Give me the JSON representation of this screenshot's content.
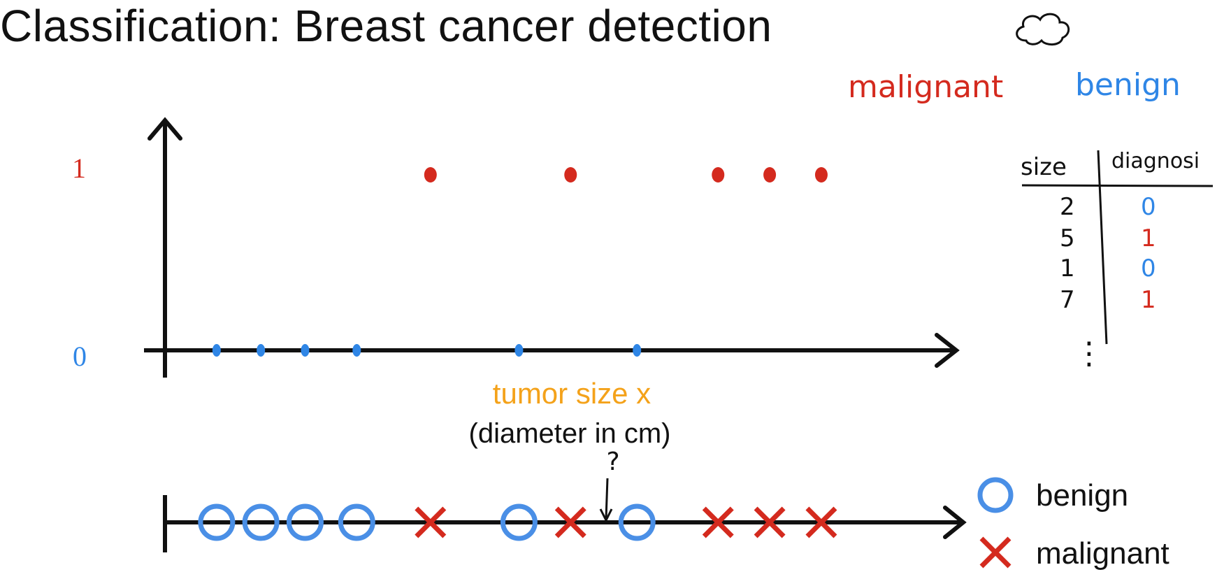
{
  "title": "Classification: Breast cancer detection",
  "colors": {
    "malignant": "#d42a1e",
    "benign": "#2f86e6",
    "benign_marker": "#4a8fe6",
    "xlabel": "#f4a21a",
    "axis": "#111111"
  },
  "class_labels": {
    "malignant": "malignant",
    "benign": "benign"
  },
  "table": {
    "headers": [
      "size",
      "diagnosi"
    ],
    "rows": [
      {
        "size": "2",
        "diagnosis": "0"
      },
      {
        "size": "5",
        "diagnosis": "1"
      },
      {
        "size": "1",
        "diagnosis": "0"
      },
      {
        "size": "7",
        "diagnosis": "1"
      }
    ],
    "ellipsis": "⋮"
  },
  "legend": [
    {
      "marker": "circle",
      "label": "benign"
    },
    {
      "marker": "cross",
      "label": "malignant"
    }
  ],
  "annotation": "?",
  "chart_data": [
    {
      "type": "scatter",
      "title": "",
      "xlabel": "tumor size x",
      "xlabel_sub": "(diameter in cm)",
      "ylabel": "",
      "y_ticks": [
        "1",
        "0"
      ],
      "ylim": [
        0,
        1
      ],
      "xlim": [
        0,
        10
      ],
      "grid": false,
      "series": [
        {
          "name": "benign",
          "x": [
            0.7,
            1.3,
            1.9,
            2.6,
            4.8,
            6.4
          ],
          "y": [
            0,
            0,
            0,
            0,
            0,
            0
          ]
        },
        {
          "name": "malignant",
          "x": [
            3.6,
            5.5,
            7.5,
            8.2,
            8.9
          ],
          "y": [
            1,
            1,
            1,
            1,
            1
          ]
        }
      ]
    },
    {
      "type": "scatter",
      "title": "",
      "xlabel": "",
      "ylabel": "",
      "xlim": [
        0,
        10
      ],
      "grid": false,
      "series": [
        {
          "name": "benign",
          "x": [
            0.7,
            1.3,
            1.9,
            2.6,
            4.8,
            6.4
          ],
          "marker": "circle"
        },
        {
          "name": "malignant",
          "x": [
            3.6,
            5.5,
            7.5,
            8.2,
            8.9
          ],
          "marker": "cross"
        }
      ],
      "annotation_x": 6.0
    }
  ]
}
